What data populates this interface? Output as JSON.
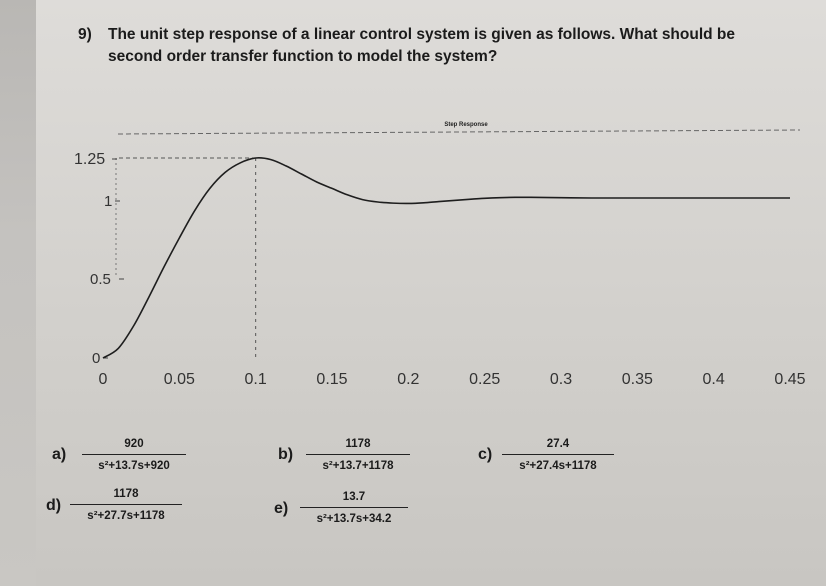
{
  "question": {
    "number": "9)",
    "line1": "The unit step response of a linear control system is given as follows. What should be",
    "line2": "second order transfer function to model the system?"
  },
  "chart_data": {
    "type": "line",
    "title": "Step Response",
    "xlabel": "",
    "ylabel": "",
    "xlim": [
      0,
      0.45
    ],
    "ylim": [
      0,
      1.25
    ],
    "x_ticks": [
      "0",
      "0.05",
      "0.1",
      "0.15",
      "0.2",
      "0.25",
      "0.3",
      "0.35",
      "0.4",
      "0.45"
    ],
    "y_ticks": [
      "0",
      "0.5",
      "1",
      "1.25"
    ],
    "grid": false,
    "series": [
      {
        "x": [
          0,
          0.01,
          0.02,
          0.03,
          0.04,
          0.05,
          0.06,
          0.07,
          0.08,
          0.09,
          0.1,
          0.11,
          0.12,
          0.13,
          0.14,
          0.15,
          0.16,
          0.17,
          0.18,
          0.19,
          0.2,
          0.21,
          0.22,
          0.23,
          0.24,
          0.25,
          0.26,
          0.27,
          0.28,
          0.3,
          0.32,
          0.35,
          0.38,
          0.41,
          0.45
        ],
        "values": [
          0,
          0.06,
          0.2,
          0.38,
          0.57,
          0.75,
          0.92,
          1.06,
          1.16,
          1.22,
          1.25,
          1.24,
          1.2,
          1.15,
          1.1,
          1.06,
          1.02,
          0.99,
          0.975,
          0.968,
          0.966,
          0.97,
          0.978,
          0.985,
          0.992,
          0.998,
          1.002,
          1.004,
          1.004,
          1.002,
          1.0,
          1.0,
          1.0,
          1.0,
          1.0
        ]
      }
    ],
    "annotations": {
      "peak_time": 0.1,
      "peak_value": 1.25
    }
  },
  "options": [
    {
      "letter": "a)",
      "numerator": "920",
      "denominator": "s²+13.7s+920"
    },
    {
      "letter": "b)",
      "numerator": "1178",
      "denominator": "s²+13.7+1178"
    },
    {
      "letter": "c)",
      "numerator": "27.4",
      "denominator": "s²+27.4s+1178"
    },
    {
      "letter": "d)",
      "numerator": "1178",
      "denominator": "s²+27.7s+1178"
    },
    {
      "letter": "e)",
      "numerator": "13.7",
      "denominator": "s²+13.7s+34.2"
    }
  ],
  "colors": {
    "curve": "#1e1e1e",
    "dashed": "#555555"
  }
}
